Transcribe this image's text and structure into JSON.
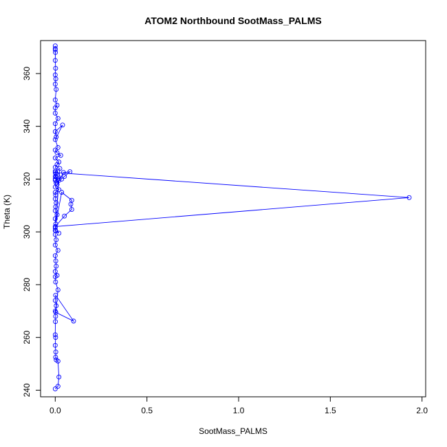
{
  "chart_data": {
    "type": "line",
    "title": "ATOM2 Northbound SootMass_PALMS",
    "xlabel": "SootMass_PALMS",
    "ylabel": "Theta (K)",
    "xlim": [
      -0.08,
      2.02
    ],
    "ylim": [
      237.5,
      372.5
    ],
    "x_ticks": [
      0,
      0.5,
      1,
      1.5,
      2
    ],
    "x_tick_labels": [
      "0.0",
      "0.5",
      "1.0",
      "1.5",
      "2.0"
    ],
    "y_ticks": [
      240,
      260,
      280,
      300,
      320,
      340,
      360
    ],
    "y_tick_labels": [
      "240",
      "260",
      "280",
      "300",
      "320",
      "340",
      "360"
    ],
    "grid": false,
    "legend": "none",
    "marker": "open-circle",
    "color": "#0000ff",
    "series": [
      {
        "x": [
          0.0,
          0.015,
          0.02,
          0.015,
          0.005,
          0.002,
          0.003,
          0.0,
          0.002,
          0.0,
          0.001,
          0.002,
          0.0,
          0.005,
          0.0,
          0.002,
          0.1,
          0.003,
          0.015,
          0.002,
          0.0,
          0.01,
          0.0,
          0.005,
          0.003,
          0.0,
          0.015,
          0.0,
          0.005,
          0.0,
          0.002,
          0.0,
          0.003,
          0.0,
          0.01,
          0.0,
          0.002,
          0.005,
          0.0,
          0.002,
          0.0,
          0.02,
          0.0,
          0.005,
          0.0,
          0.015,
          0.0,
          0.003,
          0.0,
          0.025,
          0.0,
          0.02,
          0.0,
          0.05,
          0.09,
          0.085,
          0.09,
          0.035,
          0.0,
          1.93,
          0.0,
          0.005,
          0.0,
          0.02,
          0.01,
          0.045,
          0.08,
          0.05,
          0.035,
          0.0,
          0.01,
          0.02,
          0.0,
          0.03,
          0.01,
          0.0,
          0.015,
          0.0,
          0.04,
          0.0,
          0.005,
          0.0,
          0.015,
          0.0,
          0.0,
          0.01,
          0.0,
          0.005,
          0.0,
          0.003,
          0.0,
          0.002,
          0.0,
          0.001,
          0.0,
          0.0,
          0.0
        ],
        "y": [
          240.5,
          241.5,
          245,
          251,
          251.5,
          252.5,
          254.5,
          257,
          260,
          261,
          266,
          268,
          270,
          272,
          274,
          276,
          266.2,
          269.5,
          278,
          281,
          283,
          283.5,
          285,
          287,
          289,
          291,
          293,
          295,
          297,
          299,
          300.5,
          301.5,
          303,
          305,
          306.5,
          308,
          309.5,
          311,
          312.5,
          314,
          315,
          316,
          317,
          318.5,
          319.5,
          320,
          321,
          322,
          323,
          324,
          300.5,
          299.5,
          302,
          306,
          308.5,
          310.5,
          312,
          315,
          302,
          313,
          322.5,
          321,
          320,
          319.5,
          318,
          322.5,
          322.8,
          321,
          320,
          324.5,
          325.5,
          326.5,
          328,
          329,
          330,
          331,
          332,
          335,
          340.5,
          338,
          336,
          341,
          343,
          345,
          347,
          348,
          350,
          354,
          356,
          358,
          359.5,
          362,
          365,
          368,
          369,
          369.5,
          370.5
        ]
      }
    ]
  }
}
